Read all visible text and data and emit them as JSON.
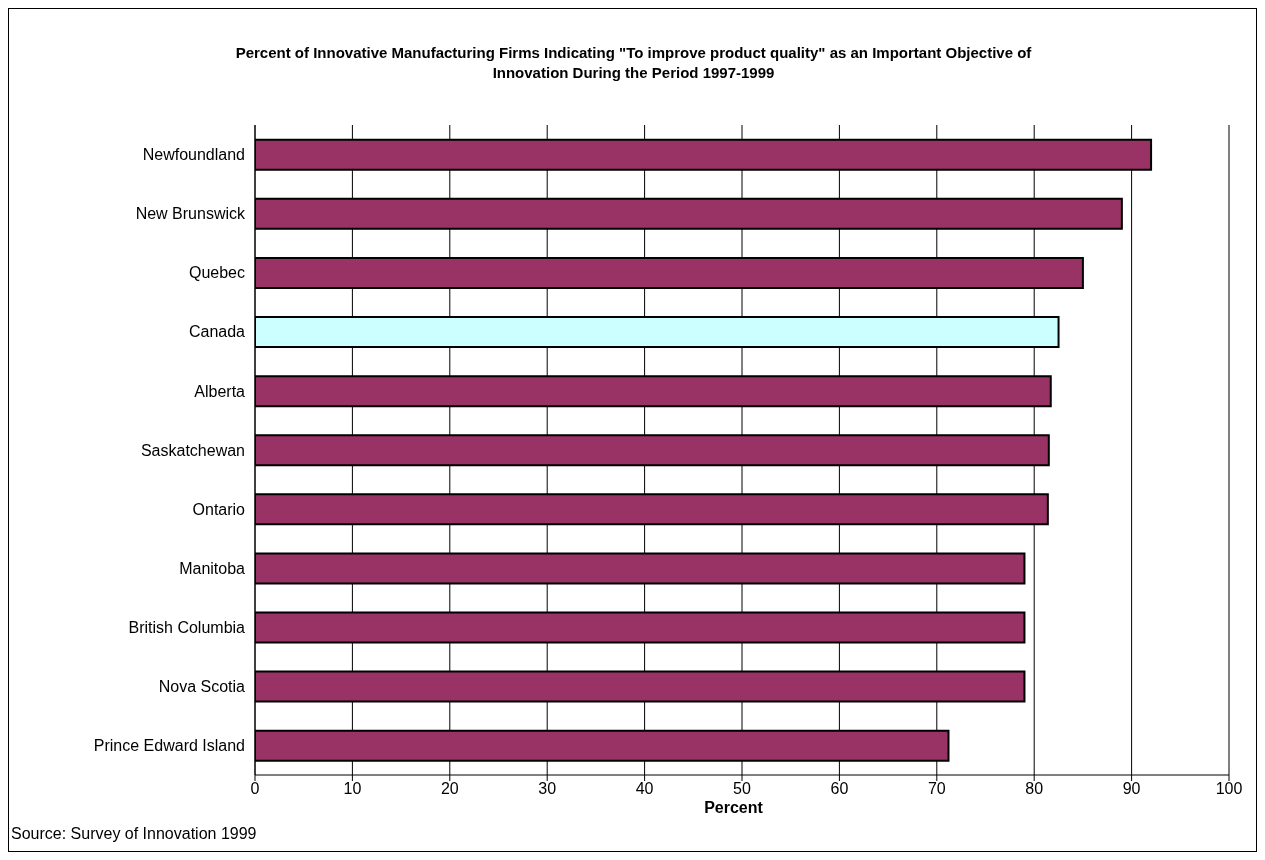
{
  "chart_data": {
    "type": "bar",
    "orientation": "horizontal",
    "title": "Percent of Innovative Manufacturing Firms Indicating \"To improve product quality\" as an Important Objective of Innovation During the Period 1997-1999",
    "xlabel": "Percent",
    "annotations": [
      "Source:  Survey of Innovation 1999"
    ],
    "categories": [
      "Newfoundland",
      "New Brunswick",
      "Quebec",
      "Canada",
      "Alberta",
      "Saskatchewan",
      "Ontario",
      "Manitoba",
      "British Columbia",
      "Nova Scotia",
      "Prince Edward Island"
    ],
    "values": [
      92,
      89,
      85,
      82.5,
      81.7,
      81.5,
      81.4,
      79,
      79,
      79,
      71.2
    ],
    "colors": [
      "#993366",
      "#993366",
      "#993366",
      "#ccffff",
      "#993366",
      "#993366",
      "#993366",
      "#993366",
      "#993366",
      "#993366",
      "#993366"
    ],
    "xlim": [
      0,
      100
    ],
    "xticks": [
      0,
      10,
      20,
      30,
      40,
      50,
      60,
      70,
      80,
      90,
      100
    ],
    "grid": "x",
    "legend": false
  }
}
